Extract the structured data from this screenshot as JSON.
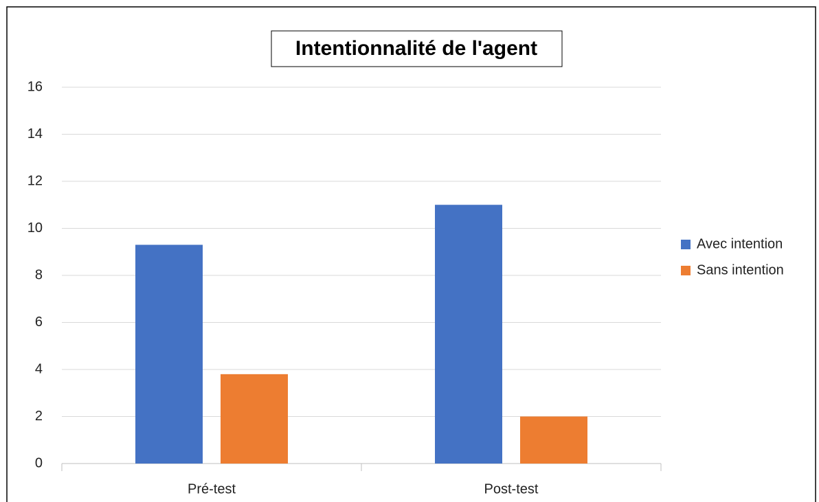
{
  "chart_data": {
    "type": "bar",
    "title": "Intentionnalité de l'agent",
    "categories": [
      "Pré-test",
      "Post-test"
    ],
    "series": [
      {
        "name": "Avec intention",
        "color": "#4472c4",
        "values": [
          9.3,
          11
        ]
      },
      {
        "name": "Sans intention",
        "color": "#ed7d31",
        "values": [
          3.8,
          2
        ]
      }
    ],
    "ylim": [
      0,
      16
    ],
    "yticks": [
      0,
      2,
      4,
      6,
      8,
      10,
      12,
      14,
      16
    ],
    "grid": true,
    "legend": "right"
  }
}
